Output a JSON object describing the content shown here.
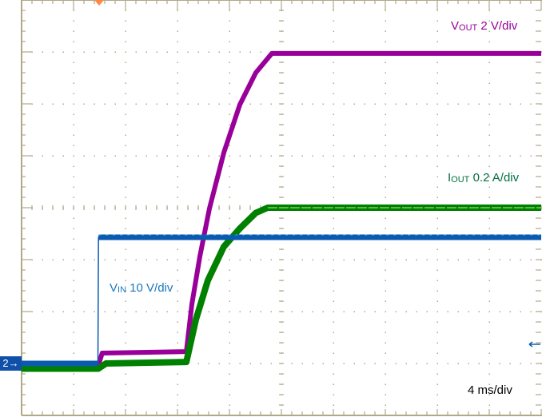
{
  "chart_data": {
    "type": "line",
    "title": "",
    "xlabel": "",
    "ylabel": "",
    "grid": true,
    "x_unit": "ms",
    "xlim": [
      0,
      40
    ],
    "divisions": {
      "horizontal": 10,
      "vertical": 8
    },
    "timebase_label": "4 ms/div",
    "ground_marker": "2",
    "series": [
      {
        "name": "VOUT",
        "label_main": "V",
        "label_sub": "OUT",
        "scale_text": " 2 V/div",
        "unit": "V",
        "volts_per_div": 2,
        "color": "#990099",
        "x": [
          0,
          5.9,
          6.2,
          12.68,
          13.11,
          13.72,
          14.46,
          15.57,
          16.8,
          18.03,
          19.26,
          40
        ],
        "y": [
          -0.1,
          -0.1,
          0.4,
          0.46,
          2.28,
          4.12,
          5.97,
          8.12,
          9.97,
          11.2,
          11.94,
          11.94
        ]
      },
      {
        "name": "IOUT",
        "label_main": "I",
        "label_sub": "OUT",
        "scale_text": " 0.2 A/div",
        "unit": "A",
        "volts_per_div": 0.2,
        "color": "#008000",
        "x": [
          0,
          5.9,
          6.5,
          12.68,
          13.42,
          14.34,
          15.57,
          16.8,
          18.03,
          18.95,
          40
        ],
        "y": [
          -0.02,
          -0.02,
          0.0,
          0.006,
          0.17,
          0.32,
          0.45,
          0.52,
          0.58,
          0.6,
          0.6
        ]
      },
      {
        "name": "VIN",
        "label_main": "V",
        "label_sub": "IN",
        "scale_text": " 10 V/div",
        "unit": "V",
        "volts_per_div": 10,
        "color": "#0a5bb0",
        "x": [
          0,
          5.88,
          5.92,
          40
        ],
        "y": [
          0,
          0,
          24.3,
          24.3
        ]
      }
    ]
  },
  "colors": {
    "grid": "#b0a888",
    "trigger_marker": "#ff8844",
    "ground_marker_bg": "#1050a8"
  }
}
